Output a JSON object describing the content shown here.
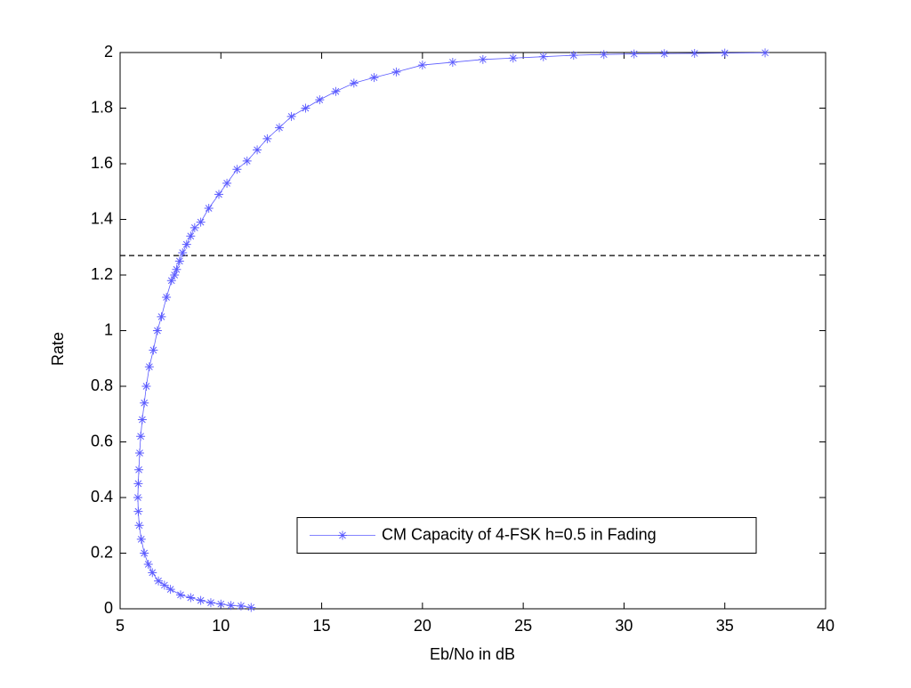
{
  "chart_data": {
    "type": "line",
    "xlabel": "Eb/No in dB",
    "ylabel": "Rate",
    "xlim": [
      5,
      40
    ],
    "ylim": [
      0,
      2
    ],
    "xticks": [
      5,
      10,
      15,
      20,
      25,
      30,
      35,
      40
    ],
    "yticks": [
      0,
      0.2,
      0.4,
      0.6,
      0.8,
      1,
      1.2,
      1.4,
      1.6,
      1.8,
      2
    ],
    "legend_position": "east",
    "reference_line": {
      "value": 1.27,
      "color": "#000000",
      "style": "dashed"
    },
    "series": [
      {
        "name": "CM Capacity of 4-FSK h=0.5 in Fading",
        "color": "#5b5bff",
        "marker": "asterisk",
        "x": [
          11.5,
          11,
          10.5,
          10,
          9.5,
          9,
          8.5,
          8,
          7.5,
          7.2,
          6.9,
          6.6,
          6.4,
          6.2,
          6.05,
          5.95,
          5.9,
          5.88,
          5.9,
          5.93,
          5.97,
          6.02,
          6.1,
          6.2,
          6.3,
          6.45,
          6.65,
          6.85,
          7.05,
          7.3,
          7.55,
          7.7,
          7.8,
          7.95,
          8.1,
          8.3,
          8.5,
          8.7,
          9,
          9.4,
          9.9,
          10.3,
          10.8,
          11.3,
          11.8,
          12.3,
          12.9,
          13.5,
          14.2,
          14.9,
          15.7,
          16.6,
          17.6,
          18.7,
          20,
          21.5,
          23,
          24.5,
          26,
          27.5,
          29,
          30.5,
          32,
          33.5,
          35,
          37
        ],
        "values": [
          0.005,
          0.01,
          0.012,
          0.017,
          0.022,
          0.03,
          0.04,
          0.05,
          0.07,
          0.085,
          0.1,
          0.13,
          0.16,
          0.2,
          0.25,
          0.3,
          0.35,
          0.4,
          0.45,
          0.5,
          0.56,
          0.62,
          0.68,
          0.74,
          0.8,
          0.87,
          0.93,
          1,
          1.05,
          1.12,
          1.18,
          1.2,
          1.22,
          1.25,
          1.28,
          1.31,
          1.34,
          1.37,
          1.39,
          1.44,
          1.49,
          1.53,
          1.58,
          1.61,
          1.65,
          1.69,
          1.73,
          1.77,
          1.8,
          1.83,
          1.86,
          1.89,
          1.91,
          1.93,
          1.955,
          1.965,
          1.975,
          1.98,
          1.985,
          1.99,
          1.993,
          1.995,
          1.996,
          1.997,
          1.998,
          1.999
        ]
      }
    ]
  }
}
